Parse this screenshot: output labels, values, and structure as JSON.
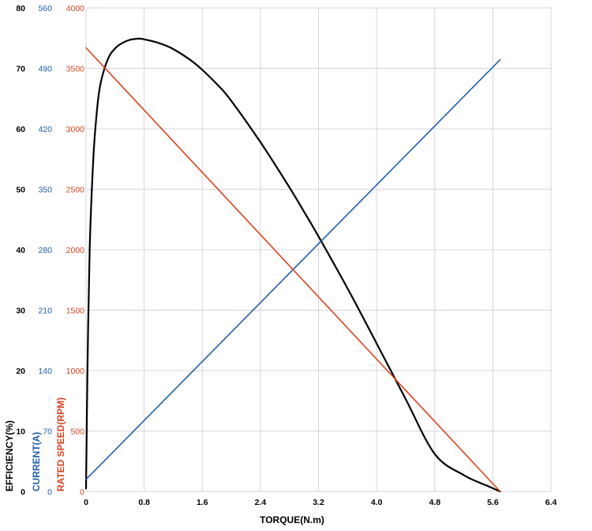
{
  "colors": {
    "efficiency": "#000000",
    "current": "#1f5fa8",
    "speed": "#d9431e",
    "grid": "#d4d4e0"
  },
  "chart_data": {
    "type": "line",
    "title": "",
    "grid": true,
    "x_axis": {
      "label": "TORQUE(N.m)",
      "range": [
        0,
        6.4
      ],
      "ticks": [
        "0",
        "0.8",
        "1.6",
        "2.4",
        "3.2",
        "4.0",
        "4.8",
        "5.6",
        "6.4"
      ]
    },
    "y_axes": [
      {
        "label": "EFFICIENCY(%)",
        "range": [
          0,
          80
        ],
        "ticks": [
          "0",
          "10",
          "20",
          "30",
          "40",
          "50",
          "60",
          "70",
          "80"
        ]
      },
      {
        "label": "CURRENT(A)",
        "range": [
          0,
          560
        ],
        "ticks": [
          "0",
          "70",
          "140",
          "210",
          "280",
          "350",
          "420",
          "490",
          "560"
        ]
      },
      {
        "label": "RATED SPEED(RPM)",
        "range": [
          0,
          4000
        ],
        "ticks": [
          "0",
          "500",
          "1000",
          "1500",
          "2000",
          "2500",
          "3000",
          "3500",
          "4000"
        ]
      }
    ],
    "series": [
      {
        "key": "efficiency",
        "axis": 0,
        "x": [
          0.0,
          0.02,
          0.05,
          0.1,
          0.15,
          0.2,
          0.3,
          0.4,
          0.5,
          0.6,
          0.7,
          0.75,
          0.8,
          1.0,
          1.2,
          1.5,
          1.8,
          2.0,
          2.4,
          2.8,
          3.0,
          3.2,
          3.6,
          4.0,
          4.4,
          4.8,
          5.2,
          5.55,
          5.7
        ],
        "y": [
          0.5,
          20,
          40,
          55,
          63,
          67.5,
          71.5,
          73.3,
          74.2,
          74.7,
          74.9,
          74.9,
          74.8,
          74.2,
          73.2,
          70.8,
          67.4,
          64.6,
          57.8,
          50.3,
          46.3,
          42.2,
          33.6,
          24.5,
          15.3,
          6.2,
          2.7,
          0.8,
          0
        ]
      },
      {
        "key": "current",
        "axis": 1,
        "x": [
          0,
          5.7
        ],
        "y": [
          14,
          500
        ]
      },
      {
        "key": "speed",
        "axis": 2,
        "x": [
          0,
          5.7
        ],
        "y": [
          3670,
          0
        ]
      }
    ]
  }
}
